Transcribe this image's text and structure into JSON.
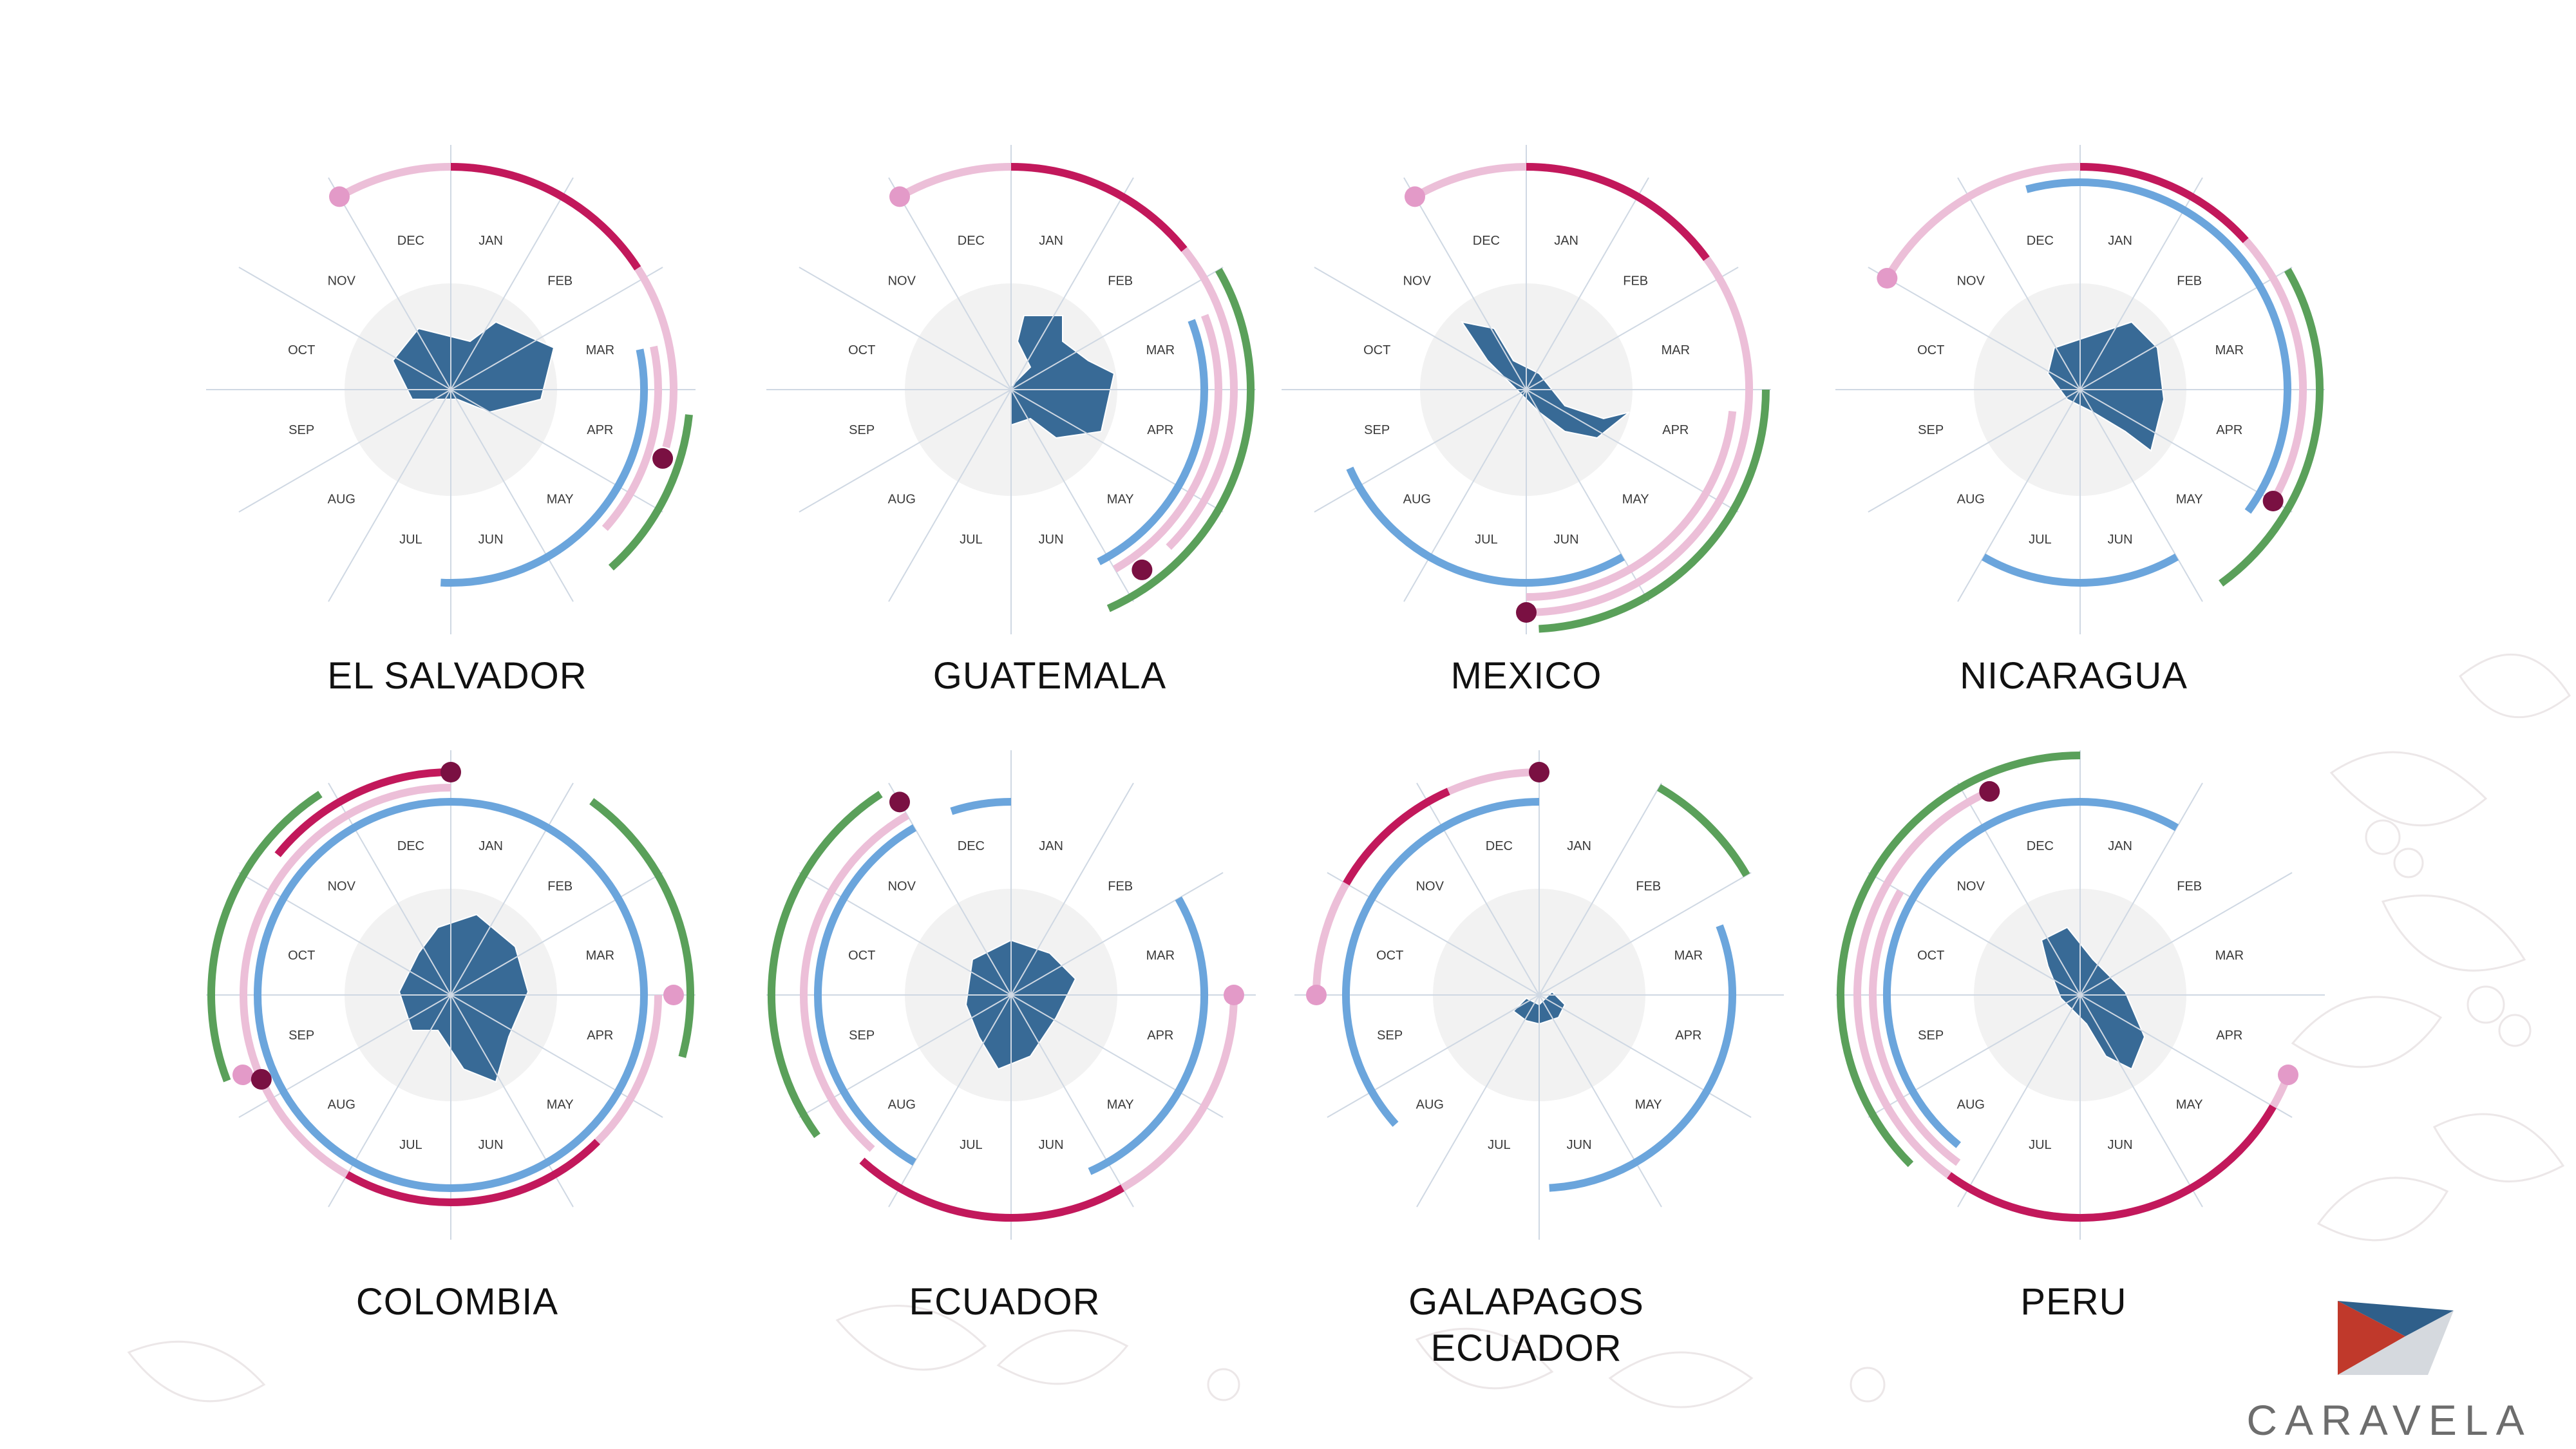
{
  "brand": {
    "name": "CARAVELA"
  },
  "colors": {
    "harvest_dark": "#c2185b",
    "harvest_light": "#ecbfd8",
    "blue": "#6ba5dc",
    "green": "#5aa05a",
    "dot_dark": "#7a1042",
    "dot_light": "#e39ac8",
    "map_fill": "#386a96",
    "map_outline": "#ffffff"
  },
  "chart_data": [
    {
      "type": "radial-calendar",
      "country": "EL SALVADOR",
      "months": [
        "JAN",
        "FEB",
        "MAR",
        "APR",
        "MAY",
        "JUN",
        "JUL",
        "AUG",
        "SEP",
        "OCT",
        "NOV",
        "DEC"
      ],
      "arcs": [
        {
          "color": "harvest_light",
          "ring": 3,
          "from": 11.0,
          "to": 3.5
        },
        {
          "color": "harvest_dark",
          "ring": 3,
          "from": 0.0,
          "to": 1.9
        },
        {
          "color": "harvest_light",
          "ring": 2,
          "from": 2.6,
          "to": 4.4
        },
        {
          "color": "blue",
          "ring": 1,
          "from": 2.6,
          "to": 6.1
        },
        {
          "color": "green",
          "ring": 4,
          "from": 3.2,
          "to": 4.6
        }
      ],
      "dots": [
        {
          "color": "dot_light",
          "ring": 3,
          "month": 11.0
        },
        {
          "color": "dot_dark",
          "ring": 3,
          "month": 3.6
        }
      ]
    },
    {
      "type": "radial-calendar",
      "country": "GUATEMALA",
      "months": [
        "JAN",
        "FEB",
        "MAR",
        "APR",
        "MAY",
        "JUN",
        "JUL",
        "AUG",
        "SEP",
        "OCT",
        "NOV",
        "DEC"
      ],
      "arcs": [
        {
          "color": "harvest_light",
          "ring": 3,
          "from": 11.0,
          "to": 4.5
        },
        {
          "color": "harvest_dark",
          "ring": 3,
          "from": 0.0,
          "to": 1.7
        },
        {
          "color": "harvest_light",
          "ring": 2,
          "from": 2.3,
          "to": 5.0
        },
        {
          "color": "blue",
          "ring": 1,
          "from": 2.3,
          "to": 5.1
        },
        {
          "color": "green",
          "ring": 4,
          "from": 2.0,
          "to": 5.2
        }
      ],
      "dots": [
        {
          "color": "dot_light",
          "ring": 3,
          "month": 11.0
        },
        {
          "color": "dot_dark",
          "ring": 3,
          "month": 4.8
        }
      ]
    },
    {
      "type": "radial-calendar",
      "country": "MEXICO",
      "months": [
        "JAN",
        "FEB",
        "MAR",
        "APR",
        "MAY",
        "JUN",
        "JUL",
        "AUG",
        "SEP",
        "OCT",
        "NOV",
        "DEC"
      ],
      "arcs": [
        {
          "color": "harvest_light",
          "ring": 3,
          "from": 11.0,
          "to": 6.0
        },
        {
          "color": "harvest_dark",
          "ring": 3,
          "from": 0.0,
          "to": 1.8
        },
        {
          "color": "harvest_light",
          "ring": 2,
          "from": 3.2,
          "to": 6.0
        },
        {
          "color": "blue",
          "ring": 1,
          "from": 5.0,
          "to": 8.2
        },
        {
          "color": "green",
          "ring": 4,
          "from": 3.0,
          "to": 5.9
        }
      ],
      "dots": [
        {
          "color": "dot_light",
          "ring": 3,
          "month": 11.0
        },
        {
          "color": "dot_dark",
          "ring": 3,
          "month": 6.0
        }
      ]
    },
    {
      "type": "radial-calendar",
      "country": "NICARAGUA",
      "months": [
        "JAN",
        "FEB",
        "MAR",
        "APR",
        "MAY",
        "JUN",
        "JUL",
        "AUG",
        "SEP",
        "OCT",
        "NOV",
        "DEC"
      ],
      "arcs": [
        {
          "color": "harvest_light",
          "ring": 3,
          "from": 10.0,
          "to": 4.0
        },
        {
          "color": "harvest_dark",
          "ring": 3,
          "from": 0.0,
          "to": 1.6
        },
        {
          "color": "blue",
          "ring": 2,
          "from": 11.5,
          "to": 4.2
        },
        {
          "color": "blue",
          "ring": 1,
          "from": 5.0,
          "to": 7.0
        },
        {
          "color": "green",
          "ring": 4,
          "from": 2.0,
          "to": 4.8
        }
      ],
      "dots": [
        {
          "color": "dot_light",
          "ring": 3,
          "month": 10.0
        },
        {
          "color": "dot_dark",
          "ring": 3,
          "month": 4.0
        }
      ]
    },
    {
      "type": "radial-calendar",
      "country": "COLOMBIA",
      "months": [
        "JAN",
        "FEB",
        "MAR",
        "APR",
        "MAY",
        "JUN",
        "JUL",
        "AUG",
        "SEP",
        "OCT",
        "NOV",
        "DEC"
      ],
      "arcs": [
        {
          "color": "blue",
          "ring": 1,
          "from": 0.0,
          "to": 12.0
        },
        {
          "color": "harvest_light",
          "ring": 2,
          "from": 3.0,
          "to": 12.0
        },
        {
          "color": "harvest_dark",
          "ring": 3,
          "from": 10.3,
          "to": 12.0
        },
        {
          "color": "harvest_dark",
          "ring": 2,
          "from": 4.5,
          "to": 7.0
        },
        {
          "color": "green",
          "ring": 4,
          "from": 1.2,
          "to": 3.5
        },
        {
          "color": "green",
          "ring": 4,
          "from": 8.3,
          "to": 10.9
        }
      ],
      "dots": [
        {
          "color": "dot_dark",
          "ring": 3,
          "month": 0.0
        },
        {
          "color": "dot_light",
          "ring": 3,
          "month": 3.0
        },
        {
          "color": "dot_light",
          "ring": 3,
          "month": 8.3
        },
        {
          "color": "dot_dark",
          "ring": 2,
          "month": 8.2
        }
      ]
    },
    {
      "type": "radial-calendar",
      "country": "ECUADOR",
      "months": [
        "JAN",
        "FEB",
        "MAR",
        "APR",
        "MAY",
        "JUN",
        "JUL",
        "AUG",
        "SEP",
        "OCT",
        "NOV",
        "DEC"
      ],
      "arcs": [
        {
          "color": "blue",
          "ring": 1,
          "from": 11.4,
          "to": 0.0
        },
        {
          "color": "blue",
          "ring": 1,
          "from": 7.0,
          "to": 11.0
        },
        {
          "color": "blue",
          "ring": 1,
          "from": 2.0,
          "to": 5.2
        },
        {
          "color": "harvest_light",
          "ring": 3,
          "from": 3.0,
          "to": 7.4
        },
        {
          "color": "harvest_light",
          "ring": 2,
          "from": 7.4,
          "to": 11.0
        },
        {
          "color": "harvest_dark",
          "ring": 3,
          "from": 5.0,
          "to": 7.4
        },
        {
          "color": "green",
          "ring": 4,
          "from": 7.8,
          "to": 10.9
        }
      ],
      "dots": [
        {
          "color": "dot_dark",
          "ring": 3,
          "month": 11.0
        },
        {
          "color": "dot_light",
          "ring": 3,
          "month": 3.0
        }
      ]
    },
    {
      "type": "radial-calendar",
      "country": "GALAPAGOS ECUADOR",
      "months": [
        "JAN",
        "FEB",
        "MAR",
        "APR",
        "MAY",
        "JUN",
        "JUL",
        "AUG",
        "SEP",
        "OCT",
        "NOV",
        "DEC"
      ],
      "arcs": [
        {
          "color": "blue",
          "ring": 1,
          "from": 2.3,
          "to": 5.9
        },
        {
          "color": "blue",
          "ring": 1,
          "from": 7.6,
          "to": 12.0
        },
        {
          "color": "harvest_light",
          "ring": 3,
          "from": 9.0,
          "to": 12.0
        },
        {
          "color": "harvest_dark",
          "ring": 3,
          "from": 10.0,
          "to": 11.2
        },
        {
          "color": "green",
          "ring": 4,
          "from": 1.0,
          "to": 2.0
        }
      ],
      "dots": [
        {
          "color": "dot_dark",
          "ring": 3,
          "month": 12.0
        },
        {
          "color": "dot_light",
          "ring": 3,
          "month": 9.0
        }
      ]
    },
    {
      "type": "radial-calendar",
      "country": "PERU",
      "months": [
        "JAN",
        "FEB",
        "MAR",
        "APR",
        "MAY",
        "JUN",
        "JUL",
        "AUG",
        "SEP",
        "OCT",
        "NOV",
        "DEC"
      ],
      "arcs": [
        {
          "color": "harvest_light",
          "ring": 3,
          "from": 3.7,
          "to": 11.2
        },
        {
          "color": "harvest_dark",
          "ring": 3,
          "from": 4.0,
          "to": 7.2
        },
        {
          "color": "harvest_light",
          "ring": 2,
          "from": 7.2,
          "to": 10.0
        },
        {
          "color": "blue",
          "ring": 1,
          "from": 7.3,
          "to": 1.0
        },
        {
          "color": "green",
          "ring": 4,
          "from": 7.5,
          "to": 12.0
        }
      ],
      "dots": [
        {
          "color": "dot_dark",
          "ring": 3,
          "month": 11.2
        },
        {
          "color": "dot_light",
          "ring": 3,
          "month": 3.7
        }
      ]
    }
  ]
}
